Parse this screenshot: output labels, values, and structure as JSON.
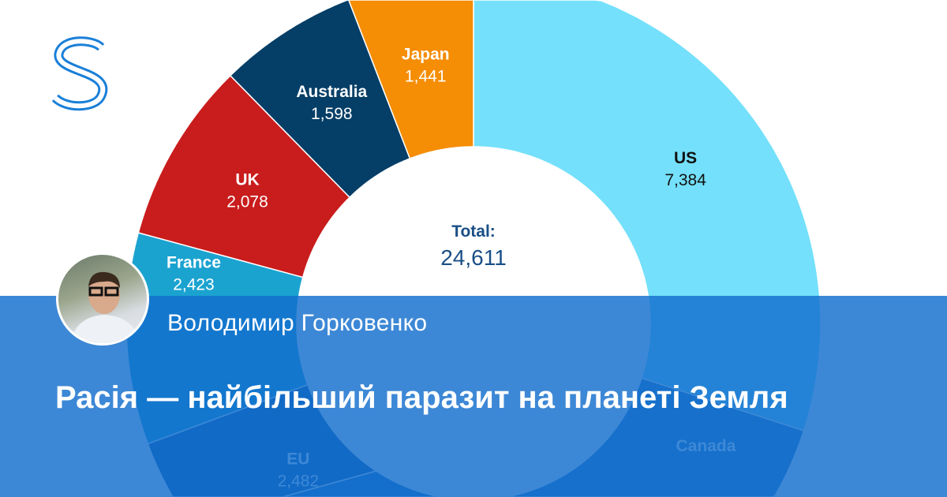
{
  "brand": {
    "logo_letter": "S",
    "color": "#1a7fd8"
  },
  "chart_data": {
    "type": "pie",
    "donut": true,
    "total_label": "Total:",
    "total_value": "24,611",
    "total": 24611,
    "start": "top, clockwise from US",
    "slices": [
      {
        "name": "US",
        "value": 7384,
        "label": "7,384",
        "color": "#74e0fb"
      },
      {
        "name": "Canada",
        "value": null,
        "label": "",
        "color": "#2a78c8"
      },
      {
        "name": "",
        "value": null,
        "label": "",
        "color": "#1f6fc0"
      },
      {
        "name": "EU",
        "value": 2482,
        "label": "2,482",
        "color": "#0d5aa8"
      },
      {
        "name": "France",
        "value": 2423,
        "label": "2,423",
        "color": "#1ba3d0"
      },
      {
        "name": "UK",
        "value": 2078,
        "label": "2,078",
        "color": "#c91c1c"
      },
      {
        "name": "Australia",
        "value": 1598,
        "label": "1,598",
        "color": "#053e66"
      },
      {
        "name": "Japan",
        "value": 1441,
        "label": "1,441",
        "color": "#f58d05"
      }
    ]
  },
  "author": {
    "name": "Володимир Горковенко"
  },
  "article": {
    "title": "Расія — найбільший паразит на планеті Земля"
  }
}
